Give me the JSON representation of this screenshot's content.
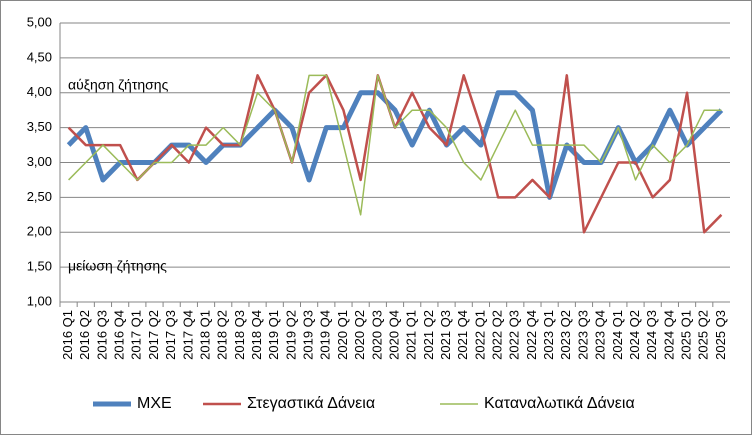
{
  "chart_data": {
    "type": "line",
    "categories": [
      "2016 Q1",
      "2016 Q2",
      "2016 Q3",
      "2016 Q4",
      "2017 Q1",
      "2017 Q2",
      "2017 Q3",
      "2017 Q4",
      "2018 Q1",
      "2018 Q2",
      "2018 Q3",
      "2018 Q4",
      "2019 Q1",
      "2019 Q2",
      "2019 Q3",
      "2019 Q4",
      "2020 Q1",
      "2020 Q2",
      "2020 Q3",
      "2020 Q4",
      "2021 Q1",
      "2021 Q2",
      "2021 Q3",
      "2021 Q4",
      "2022 Q1",
      "2022 Q2",
      "2022 Q3",
      "2022 Q4",
      "2023 Q1",
      "2023 Q2",
      "2023 Q3",
      "2023 Q4",
      "2024 Q1",
      "2024 Q2",
      "2024 Q3",
      "2024 Q4",
      "2025 Q1",
      "2025 Q2",
      "2025 Q3"
    ],
    "series": [
      {
        "name": "ΜΧΕ",
        "color": "#4f81bd",
        "values": [
          3.25,
          3.5,
          2.75,
          3.0,
          3.0,
          3.0,
          3.25,
          3.25,
          3.0,
          3.25,
          3.25,
          3.5,
          3.75,
          3.5,
          2.75,
          3.5,
          3.5,
          4.0,
          4.0,
          3.75,
          3.25,
          3.75,
          3.25,
          3.5,
          3.25,
          4.0,
          4.0,
          3.75,
          2.5,
          3.25,
          3.0,
          3.0,
          3.5,
          3.0,
          3.25,
          3.75,
          3.25,
          3.5,
          3.75
        ]
      },
      {
        "name": "Στεγαστικά Δάνεια",
        "color": "#c0504d",
        "values": [
          3.5,
          3.25,
          3.25,
          3.25,
          2.75,
          3.0,
          3.25,
          3.0,
          3.5,
          3.25,
          3.25,
          4.25,
          3.75,
          3.0,
          4.0,
          4.25,
          3.75,
          2.75,
          4.25,
          3.5,
          4.0,
          3.5,
          3.25,
          4.25,
          3.5,
          2.5,
          2.5,
          2.75,
          2.5,
          4.25,
          2.0,
          2.5,
          3.0,
          3.0,
          2.5,
          2.75,
          4.0,
          2.0,
          2.25
        ]
      },
      {
        "name": "Καταναλωτικά Δάνεια",
        "color": "#9bbb59",
        "values": [
          2.75,
          3.0,
          3.25,
          3.0,
          2.75,
          3.0,
          3.0,
          3.25,
          3.25,
          3.5,
          3.25,
          4.0,
          3.75,
          3.0,
          4.25,
          4.25,
          3.25,
          2.25,
          4.25,
          3.5,
          3.75,
          3.75,
          3.5,
          3.0,
          2.75,
          3.25,
          3.75,
          3.25,
          3.25,
          3.25,
          3.25,
          3.0,
          3.5,
          2.75,
          3.25,
          3.0,
          3.25,
          3.75,
          3.75
        ]
      }
    ],
    "annotations": [
      "αύξηση ζήτησης",
      "μείωση ζήτησης"
    ],
    "ylim": [
      1.0,
      5.0
    ],
    "yticks": [
      {
        "value": 1.0,
        "label": "1,00"
      },
      {
        "value": 1.5,
        "label": "1,50"
      },
      {
        "value": 2.0,
        "label": "2,00"
      },
      {
        "value": 2.5,
        "label": "2,50"
      },
      {
        "value": 3.0,
        "label": "3,00"
      },
      {
        "value": 3.5,
        "label": "3,50"
      },
      {
        "value": 4.0,
        "label": "4,00"
      },
      {
        "value": 4.5,
        "label": "4,50"
      },
      {
        "value": 5.0,
        "label": "5,00"
      }
    ],
    "grid": true,
    "legend": "bottom"
  }
}
